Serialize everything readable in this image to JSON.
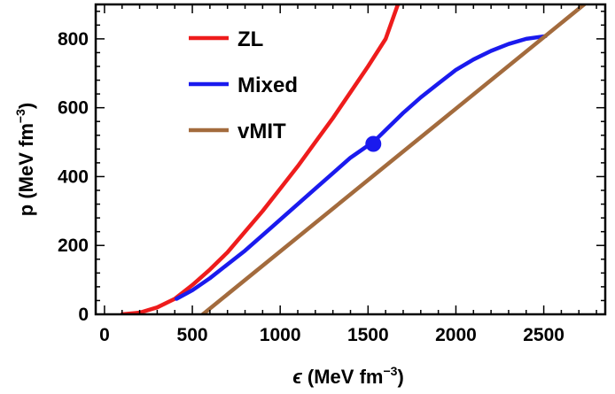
{
  "chart_data": {
    "type": "line",
    "xlabel": {
      "symbol": "ϵ",
      "text": " (MeV fm",
      "sup": "−3",
      "close": ")"
    },
    "ylabel": {
      "text": "p (MeV fm",
      "sup": "−3",
      "close": ")"
    },
    "xlim": [
      -50,
      2850
    ],
    "ylim": [
      0,
      900
    ],
    "xticks": [
      0,
      500,
      1000,
      1500,
      2000,
      2500
    ],
    "yticks": [
      0,
      200,
      400,
      600,
      800
    ],
    "grid": false,
    "legend_position": "top-left",
    "series": [
      {
        "name": "ZL",
        "color": "#ee1c1c",
        "x": [
          100,
          200,
          300,
          400,
          500,
          600,
          700,
          800,
          900,
          1000,
          1100,
          1200,
          1300,
          1400,
          1500,
          1600,
          1670
        ],
        "y": [
          0,
          5,
          20,
          45,
          85,
          130,
          180,
          240,
          300,
          365,
          430,
          500,
          570,
          645,
          720,
          800,
          900
        ]
      },
      {
        "name": "Mixed",
        "color": "#1a1aee",
        "x": [
          410,
          500,
          600,
          700,
          800,
          900,
          1000,
          1100,
          1200,
          1300,
          1400,
          1500,
          1550,
          1600,
          1700,
          1800,
          1900,
          2000,
          2100,
          2200,
          2300,
          2400,
          2510
        ],
        "y": [
          45,
          70,
          105,
          145,
          185,
          230,
          275,
          320,
          365,
          410,
          455,
          490,
          510,
          535,
          585,
          630,
          670,
          710,
          740,
          765,
          785,
          800,
          808
        ]
      },
      {
        "name": "vMIT",
        "color": "#a36b3d",
        "x": [
          560,
          2730
        ],
        "y": [
          0,
          900
        ]
      }
    ],
    "marker": {
      "x": 1530,
      "y": 495,
      "color": "#1a1aee"
    }
  }
}
